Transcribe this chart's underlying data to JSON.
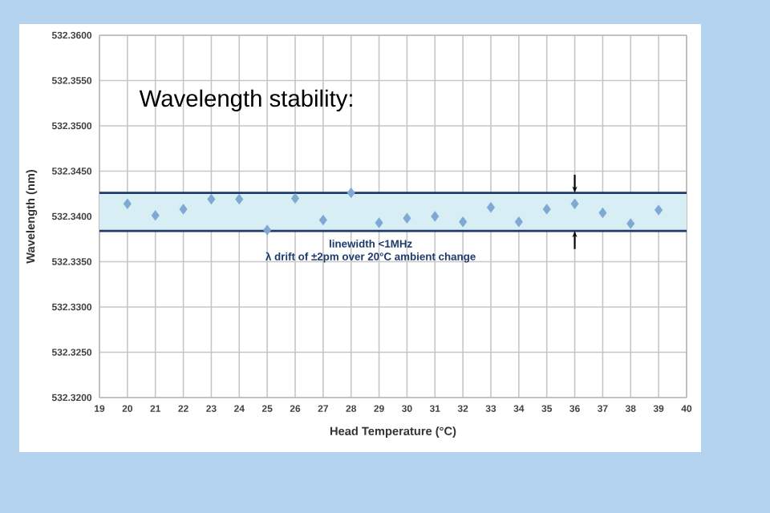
{
  "chart_data": {
    "type": "scatter",
    "title": "Wavelength stability:",
    "xlabel": "Head Temperature (°C)",
    "ylabel": "Wavelength (nm)",
    "x": [
      20,
      21,
      22,
      23,
      24,
      25,
      26,
      27,
      28,
      29,
      30,
      31,
      32,
      33,
      34,
      35,
      36,
      37,
      38,
      39
    ],
    "series": [
      {
        "color": "#7fa9d4",
        "values": [
          532.3414,
          532.3401,
          532.3408,
          532.3419,
          532.3419,
          532.3385,
          532.342,
          532.3396,
          532.3426,
          532.3393,
          532.3398,
          532.34,
          532.3394,
          532.341,
          532.3394,
          532.3408,
          532.3414,
          532.3404,
          532.3392,
          532.3407
        ]
      }
    ],
    "marker": "diamond",
    "grid": true,
    "xlim": [
      19,
      40
    ],
    "xticks": [
      19,
      20,
      21,
      22,
      23,
      24,
      25,
      26,
      27,
      28,
      29,
      30,
      31,
      32,
      33,
      34,
      35,
      36,
      37,
      38,
      39,
      40
    ],
    "ylim": [
      532.32,
      532.36
    ],
    "yticks": [
      {
        "value": 532.32,
        "label": "532.3200"
      },
      {
        "value": 532.325,
        "label": "532.3250"
      },
      {
        "value": 532.33,
        "label": "532.3300"
      },
      {
        "value": 532.335,
        "label": "532.3350"
      },
      {
        "value": 532.34,
        "label": "532.3400"
      },
      {
        "value": 532.345,
        "label": "532.3450"
      },
      {
        "value": 532.35,
        "label": "532.3500"
      },
      {
        "value": 532.355,
        "label": "532.3550"
      },
      {
        "value": 532.36,
        "label": "532.3600"
      }
    ],
    "bands": [
      {
        "axis": "y",
        "from": 532.3384,
        "to": 532.3426,
        "color": "#d6eef4"
      }
    ],
    "ref_lines": [
      {
        "axis": "y",
        "value": 532.3384,
        "color": "#1f3a6b"
      },
      {
        "axis": "y",
        "value": 532.3426,
        "color": "#1f3a6b"
      }
    ],
    "annotations": [
      "linewidth <1MHz",
      "λ drift of ±2pm over 20°C ambient change"
    ]
  }
}
